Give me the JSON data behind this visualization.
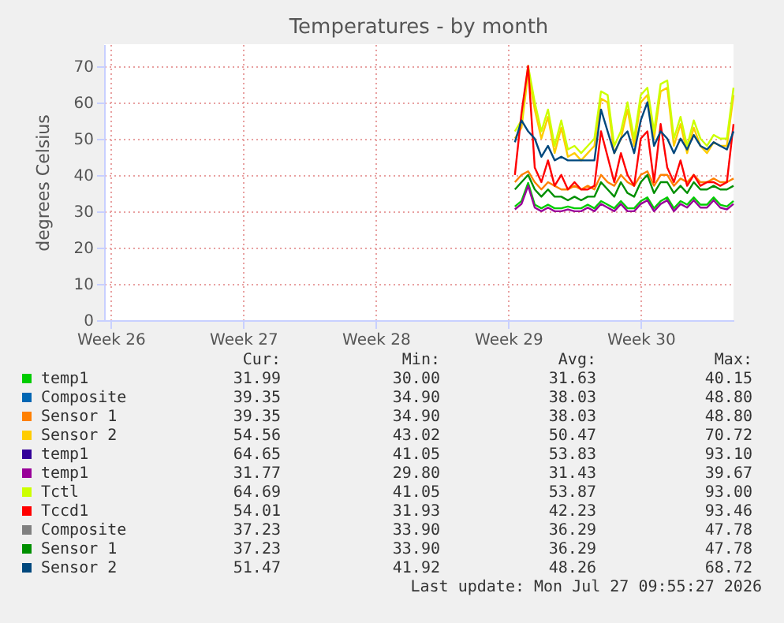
{
  "chart_data": {
    "type": "line",
    "title": "Temperatures - by month",
    "ylabel": "degrees Celsius",
    "categories": [
      null,
      "Week 26",
      null,
      null,
      null,
      null,
      null,
      null,
      null,
      null,
      null,
      null,
      null,
      null,
      null,
      null,
      null,
      null,
      null,
      null,
      null,
      "Week 27",
      null,
      null,
      null,
      null,
      null,
      null,
      null,
      null,
      null,
      null,
      null,
      null,
      null,
      null,
      null,
      null,
      null,
      null,
      null,
      "Week 28",
      null,
      null,
      null,
      null,
      null,
      null,
      null,
      null,
      null,
      null,
      null,
      null,
      null,
      null,
      null,
      null,
      null,
      null,
      null,
      "Week 29",
      null,
      null,
      null,
      null,
      null,
      null,
      null,
      null,
      null,
      null,
      null,
      null,
      null,
      null,
      null,
      null,
      null,
      null,
      null,
      "Week 30",
      null,
      null,
      null,
      null,
      null,
      null,
      null,
      null,
      null,
      null,
      null,
      null,
      null,
      null
    ],
    "ylim": [
      0,
      76
    ],
    "yticks": [
      0,
      10,
      20,
      30,
      40,
      50,
      60,
      70
    ],
    "grid": true,
    "legend": "bottom",
    "line_style": "solid",
    "marker": "none",
    "series": [
      {
        "name": "temp1",
        "color": "#00cc00",
        "values": [
          null,
          null,
          null,
          null,
          null,
          null,
          null,
          null,
          null,
          null,
          null,
          null,
          null,
          null,
          null,
          null,
          null,
          null,
          null,
          null,
          null,
          null,
          null,
          null,
          null,
          null,
          null,
          null,
          null,
          null,
          null,
          null,
          null,
          null,
          null,
          null,
          null,
          null,
          null,
          null,
          null,
          null,
          null,
          null,
          null,
          null,
          null,
          null,
          null,
          null,
          null,
          null,
          null,
          null,
          null,
          null,
          null,
          null,
          null,
          null,
          null,
          null,
          31.3,
          32.8,
          37.8,
          31.8,
          30.8,
          31.8,
          30.8,
          30.8,
          31.3,
          30.8,
          30.8,
          31.8,
          30.8,
          32.8,
          31.8,
          30.8,
          32.8,
          30.8,
          30.8,
          32.8,
          33.8,
          30.8,
          32.8,
          33.8,
          30.8,
          32.8,
          31.8,
          33.8,
          31.8,
          31.8,
          33.8,
          31.8,
          31.3,
          32.8
        ]
      },
      {
        "name": "Composite",
        "color": "#0066b3",
        "values": [
          null,
          null,
          null,
          null,
          null,
          null,
          null,
          null,
          null,
          null,
          null,
          null,
          null,
          null,
          null,
          null,
          null,
          null,
          null,
          null,
          null,
          null,
          null,
          null,
          null,
          null,
          null,
          null,
          null,
          null,
          null,
          null,
          null,
          null,
          null,
          null,
          null,
          null,
          null,
          null,
          null,
          null,
          null,
          null,
          null,
          null,
          null,
          null,
          null,
          null,
          null,
          null,
          null,
          null,
          null,
          null,
          null,
          null,
          null,
          null,
          null,
          null,
          null,
          null,
          null,
          null,
          null,
          null,
          null,
          null,
          null,
          null,
          null,
          null,
          null,
          null,
          null,
          null,
          null,
          null,
          null,
          null,
          null,
          null,
          null,
          null,
          null,
          null,
          null,
          null,
          null,
          null,
          null,
          null,
          null,
          null
        ]
      },
      {
        "name": "Sensor 1",
        "color": "#ff8000",
        "values": [
          null,
          null,
          null,
          null,
          null,
          null,
          null,
          null,
          null,
          null,
          null,
          null,
          null,
          null,
          null,
          null,
          null,
          null,
          null,
          null,
          null,
          null,
          null,
          null,
          null,
          null,
          null,
          null,
          null,
          null,
          null,
          null,
          null,
          null,
          null,
          null,
          null,
          null,
          null,
          null,
          null,
          null,
          null,
          null,
          null,
          null,
          null,
          null,
          null,
          null,
          null,
          null,
          null,
          null,
          null,
          null,
          null,
          null,
          null,
          null,
          null,
          null,
          38,
          40,
          41,
          38,
          36,
          38,
          37,
          36,
          36,
          37,
          36,
          37,
          36,
          40,
          38,
          37,
          40,
          38,
          37,
          40,
          41,
          37,
          40,
          40,
          37,
          39,
          38,
          40,
          38,
          38,
          39,
          38,
          38,
          39
        ]
      },
      {
        "name": "Sensor 2",
        "color": "#ffcc00",
        "values": [
          null,
          null,
          null,
          null,
          null,
          null,
          null,
          null,
          null,
          null,
          null,
          null,
          null,
          null,
          null,
          null,
          null,
          null,
          null,
          null,
          null,
          null,
          null,
          null,
          null,
          null,
          null,
          null,
          null,
          null,
          null,
          null,
          null,
          null,
          null,
          null,
          null,
          null,
          null,
          null,
          null,
          null,
          null,
          null,
          null,
          null,
          null,
          null,
          null,
          null,
          null,
          null,
          null,
          null,
          null,
          null,
          null,
          null,
          null,
          null,
          null,
          null,
          50,
          53,
          68,
          58,
          50,
          56,
          46,
          53,
          45,
          46,
          44,
          46,
          48,
          61,
          60,
          46,
          50,
          58,
          48,
          60,
          62,
          50,
          63,
          64,
          48,
          54,
          46,
          53,
          48,
          46,
          49,
          48,
          48,
          62
        ]
      },
      {
        "name": "temp1",
        "color": "#330099",
        "values": [
          null,
          null,
          null,
          null,
          null,
          null,
          null,
          null,
          null,
          null,
          null,
          null,
          null,
          null,
          null,
          null,
          null,
          null,
          null,
          null,
          null,
          null,
          null,
          null,
          null,
          null,
          null,
          null,
          null,
          null,
          null,
          null,
          null,
          null,
          null,
          null,
          null,
          null,
          null,
          null,
          null,
          null,
          null,
          null,
          null,
          null,
          null,
          null,
          null,
          null,
          null,
          null,
          null,
          null,
          null,
          null,
          null,
          null,
          null,
          null,
          null,
          null,
          null,
          null,
          null,
          null,
          null,
          null,
          null,
          null,
          null,
          null,
          null,
          null,
          null,
          null,
          null,
          null,
          null,
          null,
          null,
          null,
          null,
          null,
          null,
          null,
          null,
          null,
          null,
          null,
          null,
          null,
          null,
          null,
          null,
          null
        ]
      },
      {
        "name": "temp1",
        "color": "#990099",
        "values": [
          null,
          null,
          null,
          null,
          null,
          null,
          null,
          null,
          null,
          null,
          null,
          null,
          null,
          null,
          null,
          null,
          null,
          null,
          null,
          null,
          null,
          null,
          null,
          null,
          null,
          null,
          null,
          null,
          null,
          null,
          null,
          null,
          null,
          null,
          null,
          null,
          null,
          null,
          null,
          null,
          null,
          null,
          null,
          null,
          null,
          null,
          null,
          null,
          null,
          null,
          null,
          null,
          null,
          null,
          null,
          null,
          null,
          null,
          null,
          null,
          null,
          null,
          30.5,
          32,
          37,
          31,
          30,
          31,
          30,
          30,
          30.5,
          30,
          30,
          31,
          30,
          32,
          31,
          30,
          32,
          30,
          30,
          32,
          33,
          30,
          32,
          33,
          30,
          32,
          31,
          33,
          31,
          31,
          33,
          31,
          30.5,
          32
        ]
      },
      {
        "name": "Tctl",
        "color": "#ccff00",
        "values": [
          null,
          null,
          null,
          null,
          null,
          null,
          null,
          null,
          null,
          null,
          null,
          null,
          null,
          null,
          null,
          null,
          null,
          null,
          null,
          null,
          null,
          null,
          null,
          null,
          null,
          null,
          null,
          null,
          null,
          null,
          null,
          null,
          null,
          null,
          null,
          null,
          null,
          null,
          null,
          null,
          null,
          null,
          null,
          null,
          null,
          null,
          null,
          null,
          null,
          null,
          null,
          null,
          null,
          null,
          null,
          null,
          null,
          null,
          null,
          null,
          null,
          null,
          52,
          55,
          70,
          60,
          52,
          58,
          48,
          55,
          47,
          48,
          46,
          48,
          50,
          63,
          62,
          48,
          52,
          60,
          50,
          62,
          64,
          52,
          65,
          66,
          50,
          56,
          48,
          55,
          50,
          48,
          51,
          50,
          50,
          64
        ]
      },
      {
        "name": "Tccd1",
        "color": "#ff0000",
        "values": [
          null,
          null,
          null,
          null,
          null,
          null,
          null,
          null,
          null,
          null,
          null,
          null,
          null,
          null,
          null,
          null,
          null,
          null,
          null,
          null,
          null,
          null,
          null,
          null,
          null,
          null,
          null,
          null,
          null,
          null,
          null,
          null,
          null,
          null,
          null,
          null,
          null,
          null,
          null,
          null,
          null,
          null,
          null,
          null,
          null,
          null,
          null,
          null,
          null,
          null,
          null,
          null,
          null,
          null,
          null,
          null,
          null,
          null,
          null,
          null,
          null,
          null,
          40,
          57,
          70,
          42,
          38,
          44,
          37,
          40,
          36,
          38,
          36,
          36,
          37,
          52,
          45,
          38,
          46,
          40,
          37,
          50,
          52,
          38,
          54,
          42,
          38,
          44,
          37,
          40,
          37,
          38,
          38,
          37,
          38,
          54
        ]
      },
      {
        "name": "Composite",
        "color": "#808080",
        "values": [
          null,
          null,
          null,
          null,
          null,
          null,
          null,
          null,
          null,
          null,
          null,
          null,
          null,
          null,
          null,
          null,
          null,
          null,
          null,
          null,
          null,
          null,
          null,
          null,
          null,
          null,
          null,
          null,
          null,
          null,
          null,
          null,
          null,
          null,
          null,
          null,
          null,
          null,
          null,
          null,
          null,
          null,
          null,
          null,
          null,
          null,
          null,
          null,
          null,
          null,
          null,
          null,
          null,
          null,
          null,
          null,
          null,
          null,
          null,
          null,
          null,
          null,
          null,
          null,
          null,
          null,
          null,
          null,
          null,
          null,
          null,
          null,
          null,
          null,
          null,
          null,
          null,
          null,
          null,
          null,
          null,
          null,
          null,
          null,
          null,
          null,
          null,
          null,
          null,
          null,
          null,
          null,
          null,
          null,
          null,
          null
        ]
      },
      {
        "name": "Sensor 1",
        "color": "#008f00",
        "values": [
          null,
          null,
          null,
          null,
          null,
          null,
          null,
          null,
          null,
          null,
          null,
          null,
          null,
          null,
          null,
          null,
          null,
          null,
          null,
          null,
          null,
          null,
          null,
          null,
          null,
          null,
          null,
          null,
          null,
          null,
          null,
          null,
          null,
          null,
          null,
          null,
          null,
          null,
          null,
          null,
          null,
          null,
          null,
          null,
          null,
          null,
          null,
          null,
          null,
          null,
          null,
          null,
          null,
          null,
          null,
          null,
          null,
          null,
          null,
          null,
          null,
          null,
          36,
          38,
          40,
          36,
          34,
          36,
          34,
          34,
          33,
          34,
          33,
          34,
          34,
          38,
          36,
          34,
          38,
          35,
          34,
          38,
          40,
          35,
          38,
          38,
          35,
          37,
          35,
          38,
          36,
          36,
          37,
          36,
          36,
          37
        ]
      },
      {
        "name": "Sensor 2",
        "color": "#00487d",
        "values": [
          null,
          null,
          null,
          null,
          null,
          null,
          null,
          null,
          null,
          null,
          null,
          null,
          null,
          null,
          null,
          null,
          null,
          null,
          null,
          null,
          null,
          null,
          null,
          null,
          null,
          null,
          null,
          null,
          null,
          null,
          null,
          null,
          null,
          null,
          null,
          null,
          null,
          null,
          null,
          null,
          null,
          null,
          null,
          null,
          null,
          null,
          null,
          null,
          null,
          null,
          null,
          null,
          null,
          null,
          null,
          null,
          null,
          null,
          null,
          null,
          null,
          null,
          49,
          55,
          52,
          50,
          45,
          48,
          44,
          45,
          44,
          44,
          44,
          44,
          44,
          58,
          52,
          46,
          50,
          52,
          46,
          55,
          60,
          48,
          52,
          50,
          46,
          50,
          47,
          51,
          48,
          47,
          49,
          48,
          47,
          52
        ]
      }
    ],
    "annotations": [
      "Cur:",
      "Min:",
      "Avg:",
      "Max:",
      "31.99",
      "30.00",
      "31.63",
      "40.15",
      "39.35",
      "34.90",
      "38.03",
      "48.80",
      "39.35",
      "34.90",
      "38.03",
      "48.80",
      "54.56",
      "43.02",
      "50.47",
      "70.72",
      "64.65",
      "41.05",
      "53.83",
      "93.10",
      "31.77",
      "29.80",
      "31.43",
      "39.67",
      "64.69",
      "41.05",
      "53.87",
      "93.00",
      "54.01",
      "31.93",
      "42.23",
      "93.46",
      "37.23",
      "33.90",
      "36.29",
      "47.78",
      "37.23",
      "33.90",
      "36.29",
      "47.78",
      "51.47",
      "41.92",
      "48.26",
      "68.72",
      "Last update: Mon Jul 27 09:55:27 2026"
    ]
  }
}
